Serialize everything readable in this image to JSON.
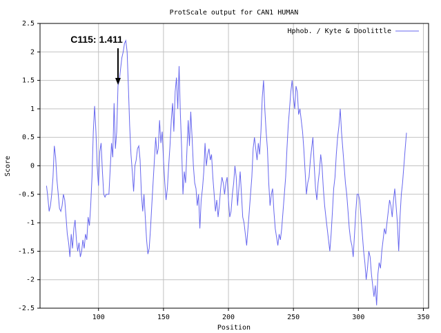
{
  "chart_data": {
    "type": "line",
    "title": "ProtScale output for CAN1 HUMAN",
    "xlabel": "Position",
    "ylabel": "Score",
    "xlim": [
      55,
      354
    ],
    "ylim": [
      -2.5,
      2.5
    ],
    "x_ticks": [
      100,
      150,
      200,
      250,
      300,
      350
    ],
    "y_ticks": [
      -2.5,
      -2,
      -1.5,
      -1,
      -0.5,
      0,
      0.5,
      1,
      1.5,
      2,
      2.5
    ],
    "grid": true,
    "legend_position": "top-right",
    "line_color": "#6666ee",
    "series": [
      {
        "name": "Hphob. / Kyte & Doolittle",
        "points": [
          [
            60,
            -0.35
          ],
          [
            61,
            -0.55
          ],
          [
            62,
            -0.8
          ],
          [
            63,
            -0.7
          ],
          [
            64,
            -0.5
          ],
          [
            65,
            -0.2
          ],
          [
            66,
            0.35
          ],
          [
            67,
            0.15
          ],
          [
            68,
            -0.25
          ],
          [
            69,
            -0.5
          ],
          [
            70,
            -0.75
          ],
          [
            71,
            -0.8
          ],
          [
            72,
            -0.7
          ],
          [
            73,
            -0.5
          ],
          [
            74,
            -0.6
          ],
          [
            75,
            -0.9
          ],
          [
            76,
            -1.2
          ],
          [
            77,
            -1.35
          ],
          [
            78,
            -1.6
          ],
          [
            79,
            -1.2
          ],
          [
            80,
            -1.45
          ],
          [
            81,
            -1.1
          ],
          [
            82,
            -0.95
          ],
          [
            83,
            -1.3
          ],
          [
            84,
            -1.5
          ],
          [
            85,
            -1.35
          ],
          [
            86,
            -1.6
          ],
          [
            87,
            -1.5
          ],
          [
            88,
            -1.3
          ],
          [
            89,
            -1.45
          ],
          [
            90,
            -1.2
          ],
          [
            91,
            -1.3
          ],
          [
            92,
            -0.9
          ],
          [
            93,
            -1.05
          ],
          [
            94,
            -0.7
          ],
          [
            95,
            -0.2
          ],
          [
            96,
            0.6
          ],
          [
            97,
            1.05
          ],
          [
            98,
            0.6
          ],
          [
            99,
            0.0
          ],
          [
            100,
            -0.35
          ],
          [
            101,
            0.25
          ],
          [
            102,
            0.4
          ],
          [
            103,
            -0.1
          ],
          [
            104,
            -0.5
          ],
          [
            105,
            -0.55
          ],
          [
            106,
            -0.5
          ],
          [
            107,
            -0.5
          ],
          [
            108,
            -0.5
          ],
          [
            109,
            -0.05
          ],
          [
            110,
            0.4
          ],
          [
            111,
            0.15
          ],
          [
            112,
            1.1
          ],
          [
            113,
            0.3
          ],
          [
            114,
            0.6
          ],
          [
            115,
            1.411
          ],
          [
            116,
            1.5
          ],
          [
            117,
            1.7
          ],
          [
            118,
            1.9
          ],
          [
            119,
            2.0
          ],
          [
            120,
            2.15
          ],
          [
            121,
            2.2
          ],
          [
            122,
            2.0
          ],
          [
            123,
            1.4
          ],
          [
            124,
            0.7
          ],
          [
            125,
            0.2
          ],
          [
            126,
            -0.1
          ],
          [
            127,
            -0.45
          ],
          [
            128,
            0.0
          ],
          [
            129,
            0.1
          ],
          [
            130,
            0.3
          ],
          [
            131,
            0.35
          ],
          [
            132,
            0.1
          ],
          [
            133,
            -0.5
          ],
          [
            134,
            -0.8
          ],
          [
            135,
            -0.5
          ],
          [
            136,
            -0.9
          ],
          [
            137,
            -1.3
          ],
          [
            138,
            -1.55
          ],
          [
            139,
            -1.45
          ],
          [
            140,
            -1.1
          ],
          [
            141,
            -0.7
          ],
          [
            142,
            -0.3
          ],
          [
            143,
            0.1
          ],
          [
            144,
            0.5
          ],
          [
            145,
            0.2
          ],
          [
            146,
            0.3
          ],
          [
            147,
            0.8
          ],
          [
            148,
            0.4
          ],
          [
            149,
            0.6
          ],
          [
            150,
            0.1
          ],
          [
            151,
            -0.3
          ],
          [
            152,
            -0.6
          ],
          [
            153,
            -0.4
          ],
          [
            154,
            0.0
          ],
          [
            155,
            0.35
          ],
          [
            156,
            0.8
          ],
          [
            157,
            1.1
          ],
          [
            158,
            0.6
          ],
          [
            159,
            1.3
          ],
          [
            160,
            1.55
          ],
          [
            161,
            1.0
          ],
          [
            162,
            1.75
          ],
          [
            163,
            0.9
          ],
          [
            164,
            0.3
          ],
          [
            165,
            -0.5
          ],
          [
            166,
            -0.1
          ],
          [
            167,
            -0.3
          ],
          [
            168,
            0.25
          ],
          [
            169,
            0.8
          ],
          [
            170,
            0.35
          ],
          [
            171,
            0.95
          ],
          [
            172,
            0.5
          ],
          [
            173,
            0.0
          ],
          [
            174,
            -0.3
          ],
          [
            175,
            -0.4
          ],
          [
            176,
            -0.7
          ],
          [
            177,
            -0.5
          ],
          [
            178,
            -1.1
          ],
          [
            179,
            -0.6
          ],
          [
            180,
            -0.4
          ],
          [
            181,
            -0.1
          ],
          [
            182,
            0.4
          ],
          [
            183,
            0.0
          ],
          [
            184,
            0.2
          ],
          [
            185,
            0.3
          ],
          [
            186,
            0.1
          ],
          [
            187,
            0.2
          ],
          [
            188,
            -0.2
          ],
          [
            189,
            -0.5
          ],
          [
            190,
            -0.8
          ],
          [
            191,
            -0.6
          ],
          [
            192,
            -0.9
          ],
          [
            193,
            -0.7
          ],
          [
            194,
            -0.4
          ],
          [
            195,
            -0.2
          ],
          [
            196,
            -0.3
          ],
          [
            197,
            -0.5
          ],
          [
            198,
            -0.3
          ],
          [
            199,
            -0.2
          ],
          [
            200,
            -0.6
          ],
          [
            201,
            -0.9
          ],
          [
            202,
            -0.8
          ],
          [
            203,
            -0.5
          ],
          [
            204,
            -0.3
          ],
          [
            205,
            0.0
          ],
          [
            206,
            -0.2
          ],
          [
            207,
            -0.7
          ],
          [
            208,
            -0.4
          ],
          [
            209,
            -0.1
          ],
          [
            210,
            -0.5
          ],
          [
            211,
            -0.9
          ],
          [
            212,
            -1.0
          ],
          [
            213,
            -1.2
          ],
          [
            214,
            -1.4
          ],
          [
            215,
            -1.1
          ],
          [
            216,
            -0.8
          ],
          [
            217,
            -0.5
          ],
          [
            218,
            -0.2
          ],
          [
            219,
            0.3
          ],
          [
            220,
            0.5
          ],
          [
            221,
            0.3
          ],
          [
            222,
            0.1
          ],
          [
            223,
            0.4
          ],
          [
            224,
            0.2
          ],
          [
            225,
            0.6
          ],
          [
            226,
            1.2
          ],
          [
            227,
            1.5
          ],
          [
            228,
            1.0
          ],
          [
            229,
            0.6
          ],
          [
            230,
            0.3
          ],
          [
            231,
            -0.3
          ],
          [
            232,
            -0.7
          ],
          [
            233,
            -0.5
          ],
          [
            234,
            -0.4
          ],
          [
            235,
            -0.8
          ],
          [
            236,
            -1.1
          ],
          [
            237,
            -1.25
          ],
          [
            238,
            -1.4
          ],
          [
            239,
            -1.2
          ],
          [
            240,
            -1.3
          ],
          [
            241,
            -1.1
          ],
          [
            242,
            -0.8
          ],
          [
            243,
            -0.5
          ],
          [
            244,
            -0.2
          ],
          [
            245,
            0.3
          ],
          [
            246,
            0.7
          ],
          [
            247,
            1.0
          ],
          [
            248,
            1.3
          ],
          [
            249,
            1.5
          ],
          [
            250,
            1.2
          ],
          [
            251,
            1.0
          ],
          [
            252,
            1.4
          ],
          [
            253,
            1.3
          ],
          [
            254,
            0.9
          ],
          [
            255,
            1.0
          ],
          [
            256,
            0.8
          ],
          [
            257,
            0.6
          ],
          [
            258,
            0.3
          ],
          [
            259,
            -0.1
          ],
          [
            260,
            -0.5
          ],
          [
            261,
            -0.3
          ],
          [
            262,
            -0.2
          ],
          [
            263,
            0.1
          ],
          [
            264,
            0.3
          ],
          [
            265,
            0.5
          ],
          [
            266,
            0.0
          ],
          [
            267,
            -0.4
          ],
          [
            268,
            -0.6
          ],
          [
            269,
            -0.3
          ],
          [
            270,
            -0.1
          ],
          [
            271,
            0.2
          ],
          [
            272,
            0.0
          ],
          [
            273,
            -0.4
          ],
          [
            274,
            -0.7
          ],
          [
            275,
            -0.9
          ],
          [
            276,
            -1.1
          ],
          [
            277,
            -1.3
          ],
          [
            278,
            -1.5
          ],
          [
            279,
            -1.2
          ],
          [
            280,
            -0.8
          ],
          [
            281,
            -0.4
          ],
          [
            282,
            -0.2
          ],
          [
            283,
            0.2
          ],
          [
            284,
            0.5
          ],
          [
            285,
            0.7
          ],
          [
            286,
            1.0
          ],
          [
            287,
            0.6
          ],
          [
            288,
            0.3
          ],
          [
            289,
            0.0
          ],
          [
            290,
            -0.3
          ],
          [
            291,
            -0.5
          ],
          [
            292,
            -0.8
          ],
          [
            293,
            -1.1
          ],
          [
            294,
            -1.3
          ],
          [
            295,
            -1.4
          ],
          [
            296,
            -1.6
          ],
          [
            297,
            -1.2
          ],
          [
            298,
            -0.8
          ],
          [
            299,
            -0.5
          ],
          [
            300,
            -0.5
          ],
          [
            301,
            -0.6
          ],
          [
            302,
            -0.9
          ],
          [
            303,
            -1.2
          ],
          [
            304,
            -1.5
          ],
          [
            305,
            -1.7
          ],
          [
            306,
            -2.0
          ],
          [
            307,
            -1.8
          ],
          [
            308,
            -1.5
          ],
          [
            309,
            -1.6
          ],
          [
            310,
            -1.9
          ],
          [
            311,
            -2.1
          ],
          [
            312,
            -2.3
          ],
          [
            313,
            -2.1
          ],
          [
            314,
            -2.45
          ],
          [
            315,
            -1.9
          ],
          [
            316,
            -1.7
          ],
          [
            317,
            -1.8
          ],
          [
            318,
            -1.5
          ],
          [
            319,
            -1.3
          ],
          [
            320,
            -1.1
          ],
          [
            321,
            -1.2
          ],
          [
            322,
            -1.0
          ],
          [
            323,
            -0.8
          ],
          [
            324,
            -0.6
          ],
          [
            325,
            -0.7
          ],
          [
            326,
            -0.9
          ],
          [
            327,
            -0.6
          ],
          [
            328,
            -0.4
          ],
          [
            329,
            -0.7
          ],
          [
            330,
            -1.0
          ],
          [
            331,
            -1.5
          ],
          [
            332,
            -0.9
          ],
          [
            333,
            -0.5
          ],
          [
            334,
            -0.3
          ],
          [
            335,
            0.0
          ],
          [
            336,
            0.3
          ],
          [
            337,
            0.58
          ]
        ]
      }
    ],
    "annotations": [
      {
        "text": "C115: 1.411",
        "x": 115,
        "y": 1.411
      }
    ]
  }
}
